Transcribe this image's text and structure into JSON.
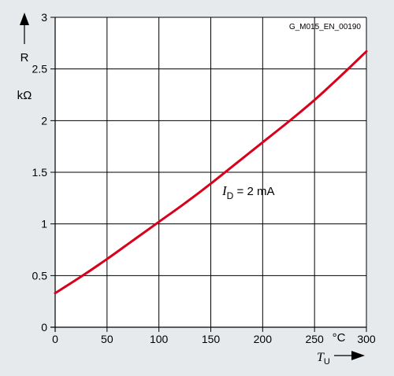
{
  "chart_data": {
    "type": "line",
    "doc_id": "G_M015_EN_00190",
    "x_ticks": [
      "0",
      "50",
      "100",
      "150",
      "200",
      "250",
      "300"
    ],
    "y_ticks": [
      "0",
      "0.5",
      "1",
      "1.5",
      "2",
      "2.5",
      "3"
    ],
    "xlim": [
      0,
      300
    ],
    "ylim": [
      0,
      3
    ],
    "x_axis": {
      "symbol": "T",
      "subscript": "U",
      "unit": "°C"
    },
    "y_axis": {
      "symbol": "R",
      "unit": "kΩ"
    },
    "grid": true,
    "series": [
      {
        "color": "#d9001b",
        "label_prefix": "I",
        "label_sub": "D",
        "label_suffix": " = 2 mA",
        "x": [
          0,
          25,
          50,
          75,
          100,
          125,
          150,
          175,
          200,
          225,
          250,
          275,
          300
        ],
        "y": [
          0.33,
          0.49,
          0.66,
          0.84,
          1.02,
          1.2,
          1.39,
          1.59,
          1.79,
          1.99,
          2.2,
          2.43,
          2.67
        ]
      }
    ]
  }
}
